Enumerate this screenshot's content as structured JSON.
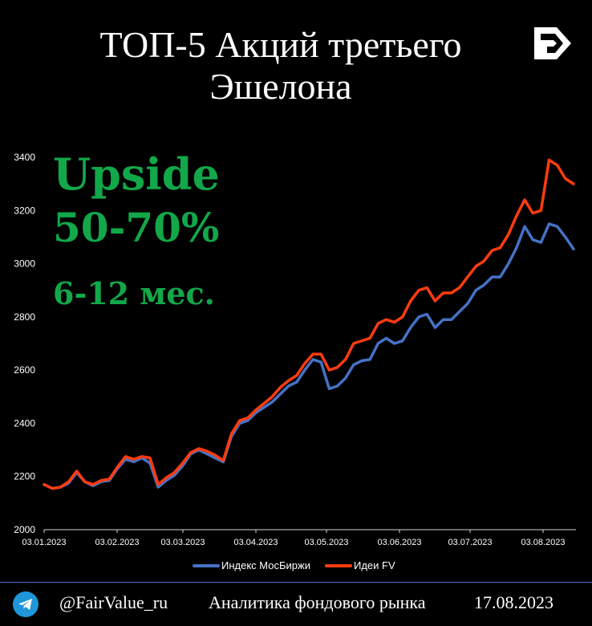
{
  "header": {
    "title_line1": "ТОП-5 Акций третьего",
    "title_line2": "Эшелона",
    "logo_icon": "fv-arrow-logo-icon"
  },
  "callout": {
    "line1": "Upside",
    "line2": "50-70%",
    "line3": "6-12 мес.",
    "color": "#12a84a"
  },
  "legend": {
    "items": [
      {
        "label": "Индекс МосБиржи",
        "color": "#4472c4"
      },
      {
        "label": "Идеи FV",
        "color": "#ff3b0f"
      }
    ]
  },
  "footer": {
    "icon": "telegram-icon",
    "handle": "@FairValue_ru",
    "description": "Аналитика фондового рынка",
    "date": "17.08.2023"
  },
  "chart_data": {
    "type": "line",
    "title": "ТОП-5 Акций третьего Эшелона",
    "xlabel": "",
    "ylabel": "",
    "ylim": [
      2000,
      3400
    ],
    "yticks": [
      2000,
      2200,
      2400,
      2600,
      2800,
      3000,
      3200,
      3400
    ],
    "xticks": [
      "03.01.2023",
      "03.02.2023",
      "03.03.2023",
      "03.04.2023",
      "03.05.2023",
      "03.06.2023",
      "03.07.2023",
      "03.08.2023"
    ],
    "grid": false,
    "legend_position": "bottom",
    "x": [
      "03.01",
      "06.01",
      "10.01",
      "13.01",
      "17.01",
      "20.01",
      "24.01",
      "27.01",
      "31.01",
      "03.02",
      "07.02",
      "10.02",
      "14.02",
      "17.02",
      "21.02",
      "24.02",
      "28.02",
      "03.03",
      "07.03",
      "10.03",
      "14.03",
      "17.03",
      "21.03",
      "24.03",
      "28.03",
      "31.03",
      "04.04",
      "07.04",
      "11.04",
      "14.04",
      "18.04",
      "21.04",
      "25.04",
      "28.04",
      "02.05",
      "05.05",
      "10.05",
      "12.05",
      "16.05",
      "19.05",
      "23.05",
      "26.05",
      "30.05",
      "02.06",
      "06.06",
      "09.06",
      "14.06",
      "16.06",
      "20.06",
      "23.06",
      "27.06",
      "30.06",
      "04.07",
      "07.07",
      "11.07",
      "14.07",
      "18.07",
      "21.07",
      "25.07",
      "28.07",
      "01.08",
      "04.08",
      "08.08",
      "11.08",
      "15.08",
      "17.08"
    ],
    "series": [
      {
        "name": "Индекс МосБиржи",
        "color": "#4472c4",
        "values": [
          2170,
          2155,
          2160,
          2175,
          2215,
          2180,
          2165,
          2180,
          2185,
          2230,
          2265,
          2255,
          2270,
          2250,
          2160,
          2185,
          2205,
          2240,
          2285,
          2300,
          2285,
          2270,
          2255,
          2350,
          2400,
          2410,
          2440,
          2460,
          2480,
          2510,
          2540,
          2555,
          2600,
          2640,
          2630,
          2530,
          2540,
          2570,
          2620,
          2635,
          2640,
          2700,
          2720,
          2700,
          2710,
          2760,
          2800,
          2810,
          2760,
          2790,
          2790,
          2820,
          2850,
          2900,
          2920,
          2950,
          2950,
          3000,
          3060,
          3140,
          3090,
          3080,
          3150,
          3140,
          3100,
          3055
        ]
      },
      {
        "name": "Идеи FV",
        "color": "#ff3b0f",
        "values": [
          2170,
          2155,
          2160,
          2180,
          2220,
          2180,
          2170,
          2185,
          2190,
          2235,
          2275,
          2265,
          2275,
          2270,
          2170,
          2195,
          2215,
          2250,
          2290,
          2305,
          2295,
          2280,
          2260,
          2360,
          2410,
          2420,
          2450,
          2475,
          2500,
          2535,
          2560,
          2580,
          2625,
          2660,
          2660,
          2600,
          2610,
          2640,
          2700,
          2710,
          2720,
          2775,
          2790,
          2780,
          2800,
          2860,
          2900,
          2910,
          2860,
          2890,
          2890,
          2910,
          2950,
          2990,
          3010,
          3050,
          3060,
          3110,
          3180,
          3240,
          3190,
          3200,
          3390,
          3370,
          3320,
          3300
        ]
      }
    ]
  }
}
